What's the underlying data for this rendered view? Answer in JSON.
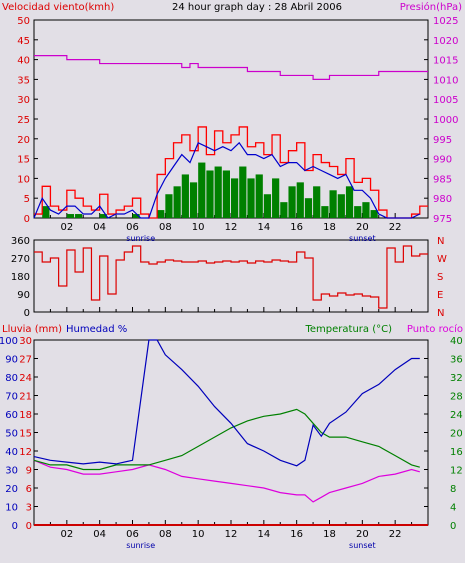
{
  "header": {
    "left": "Velocidad viento(kmh)",
    "center": "24 hour graph day : 28 Abril 2006",
    "right": "Presión(hPa)"
  },
  "x_ticks": [
    "02",
    "04",
    "06",
    "08",
    "10",
    "12",
    "14",
    "16",
    "18",
    "20",
    "22"
  ],
  "sunrise_label": "sunrise",
  "sunset_label": "sunset",
  "colors": {
    "wind": "#ff0000",
    "gust": "#ff0000",
    "avg": "#0000cc",
    "low": "#008000",
    "pressure": "#cc00cc",
    "direction": "#dd0000",
    "humidity": "#0000bb",
    "temperature": "#008000",
    "dewpoint": "#dd00dd",
    "rain": "#cc0000",
    "bg": "#e2dfe6",
    "axis": "#000000"
  },
  "labels": {
    "lluvia": "Lluvia (mm)",
    "humedad": "Humedad %",
    "temperatura": "Temperatura (°C)",
    "punto_rocio": "Punto rocío",
    "compass": [
      "N",
      "W",
      "S",
      "E",
      "N"
    ]
  },
  "chart_data": [
    {
      "type": "line",
      "title": "24 hour graph day : 28 Abril 2006",
      "xlim": [
        0,
        24
      ],
      "y_left": {
        "label": "Velocidad viento(kmh)",
        "ticks": [
          "0",
          "5",
          "10",
          "15",
          "20",
          "25",
          "30",
          "35",
          "40",
          "45",
          "50"
        ],
        "range": [
          0,
          50
        ]
      },
      "y_right": {
        "label": "Presión(hPa)",
        "ticks": [
          "975",
          "980",
          "985",
          "990",
          "995",
          "1000",
          "1005",
          "1010",
          "1015",
          "1020",
          "1025"
        ],
        "range": [
          975,
          1025
        ]
      },
      "series": [
        {
          "name": "Velocidad viento(kmh)",
          "axis": "left",
          "x": [
            0,
            0.5,
            1,
            1.5,
            2,
            2.5,
            3,
            3.5,
            4,
            4.5,
            5,
            5.5,
            6,
            6.5,
            7,
            7.5,
            8,
            8.5,
            9,
            9.5,
            10,
            10.5,
            11,
            11.5,
            12,
            12.5,
            13,
            13.5,
            14,
            14.5,
            15,
            15.5,
            16,
            16.5,
            17,
            17.5,
            18,
            18.5,
            19,
            19.5,
            20,
            20.5,
            21,
            21.5,
            22,
            22.5,
            23,
            23.5
          ],
          "y": [
            1,
            8,
            3,
            2,
            7,
            5,
            3,
            2,
            6,
            1,
            2,
            3,
            5,
            1,
            0,
            11,
            15,
            19,
            21,
            17,
            23,
            16,
            22,
            19,
            21,
            23,
            18,
            19,
            16,
            21,
            14,
            17,
            19,
            12,
            16,
            14,
            13,
            11,
            15,
            9,
            10,
            7,
            2,
            0,
            0,
            0,
            1,
            3
          ]
        },
        {
          "name": "",
          "axis": "left",
          "x": [
            0,
            0.5,
            1,
            1.5,
            2,
            2.5,
            3,
            3.5,
            4,
            4.5,
            5,
            5.5,
            6,
            6.5,
            7,
            7.5,
            8,
            8.5,
            9,
            9.5,
            10,
            10.5,
            11,
            11.5,
            12,
            12.5,
            13,
            13.5,
            14,
            14.5,
            15,
            15.5,
            16,
            16.5,
            17,
            17.5,
            18,
            18.5,
            19,
            19.5,
            20,
            20.5,
            21,
            21.5,
            22,
            22.5,
            23,
            23.5
          ],
          "y": [
            0,
            5,
            2,
            1,
            3,
            3,
            1,
            1,
            3,
            0,
            1,
            1,
            2,
            0,
            0,
            6,
            10,
            13,
            16,
            14,
            19,
            18,
            17,
            18,
            17,
            19,
            16,
            16,
            15,
            16,
            13,
            14,
            14,
            12,
            13,
            12,
            11,
            10,
            11,
            7,
            7,
            5,
            1,
            0,
            0,
            0,
            0,
            1
          ]
        },
        {
          "name": "",
          "axis": "left",
          "x": [
            0,
            0.5,
            1,
            1.5,
            2,
            2.5,
            3,
            3.5,
            4,
            4.5,
            5,
            5.5,
            6,
            6.5,
            7,
            7.5,
            8,
            8.5,
            9,
            9.5,
            10,
            10.5,
            11,
            11.5,
            12,
            12.5,
            13,
            13.5,
            14,
            14.5,
            15,
            15.5,
            16,
            16.5,
            17,
            17.5,
            18,
            18.5,
            19,
            19.5,
            20,
            20.5,
            21,
            21.5,
            22,
            22.5,
            23,
            23.5
          ],
          "y": [
            0,
            3,
            0,
            0,
            1,
            1,
            0,
            0,
            1,
            0,
            0,
            0,
            1,
            0,
            0,
            2,
            6,
            8,
            11,
            9,
            14,
            12,
            13,
            12,
            10,
            13,
            10,
            11,
            6,
            10,
            4,
            8,
            9,
            5,
            8,
            3,
            7,
            6,
            8,
            3,
            4,
            2,
            0,
            0,
            0,
            0,
            0,
            0
          ]
        },
        {
          "name": "Presión(hPa)",
          "axis": "right",
          "x": [
            0,
            1,
            2,
            3,
            4,
            5,
            6,
            7,
            8,
            9,
            9.5,
            10,
            11,
            12,
            13,
            14,
            15,
            16,
            17,
            17.5,
            18,
            19,
            20,
            21,
            22,
            23,
            24
          ],
          "y": [
            1016,
            1016,
            1015,
            1015,
            1014,
            1014,
            1014,
            1014,
            1014,
            1013,
            1014,
            1013,
            1013,
            1013,
            1012,
            1012,
            1011,
            1011,
            1010,
            1010,
            1011,
            1011,
            1011,
            1012,
            1012,
            1012,
            1012
          ]
        }
      ]
    },
    {
      "type": "line",
      "title": "",
      "xlim": [
        0,
        24
      ],
      "y_left": {
        "ticks": [
          "360",
          "270",
          "180",
          "90",
          "0"
        ],
        "range": [
          0,
          360
        ]
      },
      "y_right": {
        "ticks": [
          "N",
          "W",
          "S",
          "E",
          "N"
        ]
      },
      "series": [
        {
          "name": "",
          "x": [
            0,
            0.5,
            1,
            1.5,
            2,
            2.5,
            3,
            3.5,
            4,
            4.5,
            5,
            5.5,
            6,
            6.5,
            7,
            7.5,
            8,
            8.5,
            9,
            9.5,
            10,
            10.5,
            11,
            11.5,
            12,
            12.5,
            13,
            13.5,
            14,
            14.5,
            15,
            15.5,
            16,
            16.5,
            17,
            17.5,
            18,
            18.5,
            19,
            19.5,
            20,
            20.5,
            21,
            21.5,
            22,
            22.5,
            23,
            23.5
          ],
          "y": [
            300,
            250,
            270,
            130,
            310,
            200,
            320,
            60,
            280,
            90,
            260,
            300,
            330,
            250,
            240,
            250,
            260,
            255,
            250,
            250,
            255,
            245,
            250,
            255,
            250,
            255,
            245,
            255,
            250,
            260,
            255,
            250,
            300,
            270,
            60,
            90,
            80,
            95,
            85,
            90,
            80,
            75,
            20,
            320,
            250,
            330,
            280,
            290
          ]
        }
      ]
    },
    {
      "type": "line",
      "title": "",
      "xlim": [
        0,
        24
      ],
      "y_left": {
        "label": "Lluvia (mm)",
        "ticks": [
          "0",
          "3",
          "6",
          "9",
          "12",
          "15",
          "18",
          "21",
          "24",
          "27",
          "30"
        ],
        "range": [
          0,
          30
        ]
      },
      "y_left2": {
        "label": "Humedad %",
        "ticks": [
          "0",
          "10",
          "20",
          "30",
          "40",
          "50",
          "60",
          "70",
          "80",
          "90",
          "100"
        ],
        "range": [
          0,
          100
        ]
      },
      "y_right": {
        "label": "Temperatura (°C)",
        "ticks": [
          "0",
          "4",
          "8",
          "12",
          "16",
          "20",
          "24",
          "28",
          "32",
          "36",
          "40"
        ],
        "range": [
          0,
          40
        ]
      },
      "series": [
        {
          "name": "Humedad %",
          "axis": "left2",
          "x": [
            0,
            1,
            2,
            3,
            4,
            5,
            6,
            7,
            7.5,
            8,
            9,
            10,
            11,
            12,
            13,
            14,
            15,
            16,
            16.5,
            17,
            17.5,
            18,
            19,
            20,
            21,
            22,
            23,
            23.5
          ],
          "y": [
            37,
            35,
            34,
            33,
            34,
            33,
            35,
            100,
            100,
            92,
            84,
            75,
            64,
            55,
            44,
            40,
            35,
            32,
            35,
            54,
            48,
            55,
            61,
            71,
            76,
            84,
            90,
            90
          ]
        },
        {
          "name": "Temperatura (°C)",
          "axis": "right",
          "x": [
            0,
            1,
            2,
            3,
            4,
            5,
            6,
            7,
            8,
            9,
            10,
            11,
            12,
            13,
            14,
            15,
            16,
            16.5,
            17,
            17.5,
            18,
            19,
            20,
            21,
            22,
            23,
            23.5
          ],
          "y": [
            14,
            13,
            13,
            12,
            12,
            13,
            13,
            13,
            14,
            15,
            17,
            19,
            21,
            22.5,
            23.5,
            24,
            25,
            24,
            22,
            20,
            19,
            19,
            18,
            17,
            15,
            13,
            12.5
          ]
        },
        {
          "name": "Punto rocío",
          "axis": "right",
          "x": [
            0,
            1,
            2,
            3,
            4,
            5,
            6,
            7,
            8,
            9,
            10,
            11,
            12,
            13,
            14,
            15,
            16,
            16.5,
            17,
            17.5,
            18,
            19,
            20,
            21,
            22,
            23,
            23.5
          ],
          "y": [
            14,
            12.5,
            12,
            11,
            11,
            11.5,
            12,
            13,
            12,
            10.5,
            10,
            9.5,
            9,
            8.5,
            8,
            7,
            6.5,
            6.5,
            5,
            6,
            7,
            8,
            9,
            10.5,
            11,
            12,
            11.5
          ]
        },
        {
          "name": "Lluvia (mm)",
          "axis": "left",
          "x": [
            0,
            24
          ],
          "y": [
            0,
            0
          ]
        }
      ]
    }
  ]
}
